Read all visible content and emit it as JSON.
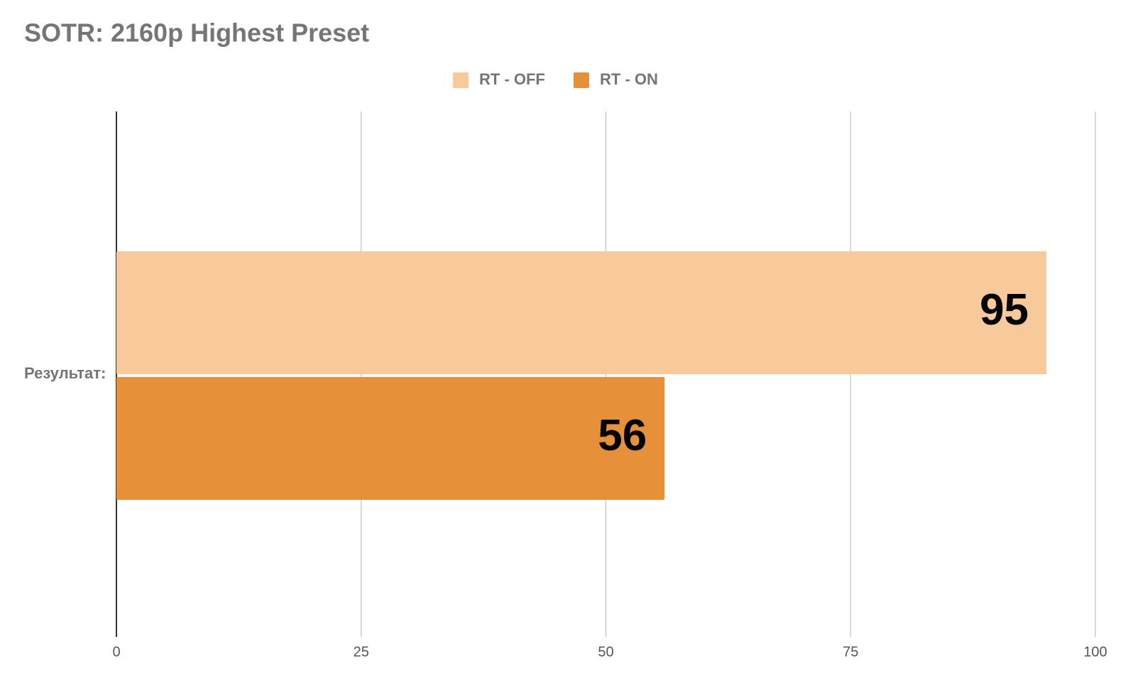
{
  "chart_data": {
    "type": "hbar",
    "title": "SOTR: 2160p Highest Preset",
    "categories": [
      "Результат:"
    ],
    "series": [
      {
        "name": "RT - OFF",
        "color": "#f8c99b",
        "values": [
          95
        ]
      },
      {
        "name": "RT - ON",
        "color": "#e6913a",
        "values": [
          56
        ]
      }
    ],
    "xlim": [
      0,
      100
    ],
    "xticks": [
      0,
      25,
      50,
      75,
      100
    ],
    "grid": true,
    "legend": "top"
  }
}
